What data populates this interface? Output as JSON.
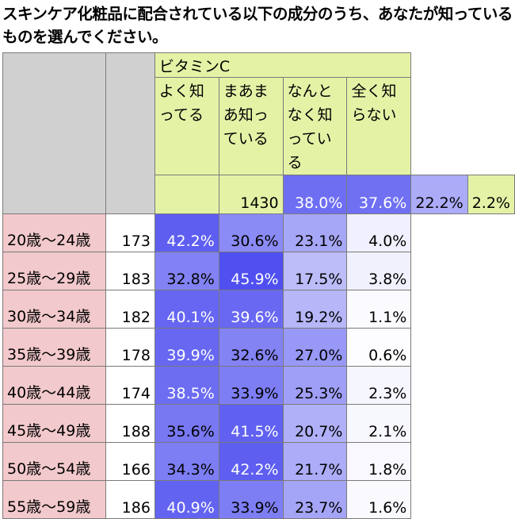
{
  "title": "スキンケア化粧品に配合されている以下の成分のうち、あなたが知っているものを選んでください。",
  "chart_data": {
    "type": "table",
    "group_label": "ビタミンC",
    "columns": [
      "よく知ってる",
      "まあまあ知っている",
      "なんとなく知っている",
      "全く知らない"
    ],
    "rows": [
      {
        "label": "",
        "n": "1430",
        "values": [
          "38.0%",
          "37.6%",
          "22.2%",
          "2.2%"
        ]
      },
      {
        "label": "20歳～24歳",
        "n": "173",
        "values": [
          "42.2%",
          "30.6%",
          "23.1%",
          "4.0%"
        ]
      },
      {
        "label": "25歳～29歳",
        "n": "183",
        "values": [
          "32.8%",
          "45.9%",
          "17.5%",
          "3.8%"
        ]
      },
      {
        "label": "30歳～34歳",
        "n": "182",
        "values": [
          "40.1%",
          "39.6%",
          "19.2%",
          "1.1%"
        ]
      },
      {
        "label": "35歳～39歳",
        "n": "178",
        "values": [
          "39.9%",
          "32.6%",
          "27.0%",
          "0.6%"
        ]
      },
      {
        "label": "40歳～44歳",
        "n": "174",
        "values": [
          "38.5%",
          "33.9%",
          "25.3%",
          "2.3%"
        ]
      },
      {
        "label": "45歳～49歳",
        "n": "188",
        "values": [
          "35.6%",
          "41.5%",
          "20.7%",
          "2.1%"
        ]
      },
      {
        "label": "50歳～54歳",
        "n": "166",
        "values": [
          "34.3%",
          "42.2%",
          "21.7%",
          "1.8%"
        ]
      },
      {
        "label": "55歳～59歳",
        "n": "186",
        "values": [
          "40.9%",
          "33.9%",
          "23.7%",
          "1.6%"
        ]
      }
    ],
    "colors": {
      "label_bg": "#f2c9cc",
      "header_bg": "#e4f2a6",
      "blank_bg": "#d0d0d0",
      "scale_low": "#ffffff",
      "scale_high": "#5050f0"
    }
  }
}
